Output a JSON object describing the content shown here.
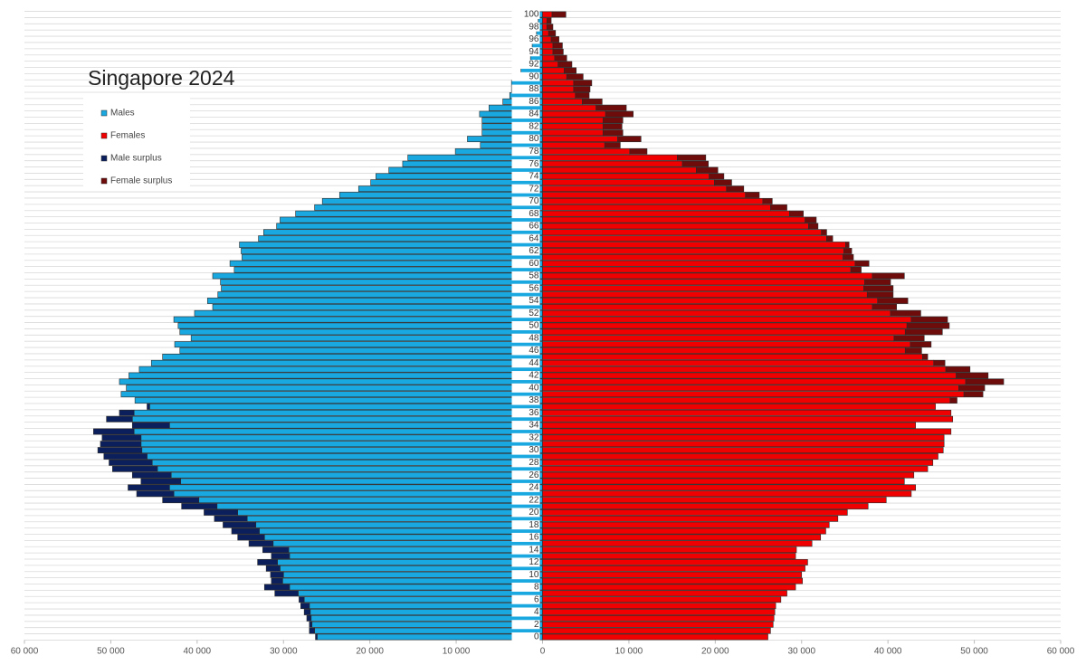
{
  "chart_data": {
    "type": "population_pyramid",
    "title": "Singapore 2024",
    "categories": [
      "0",
      null,
      "2",
      null,
      "4",
      null,
      "6",
      null,
      "8",
      null,
      "10",
      null,
      "12",
      null,
      "14",
      null,
      "16",
      null,
      "18",
      null,
      "20",
      null,
      "22",
      null,
      "24",
      null,
      "26",
      null,
      "28",
      null,
      "30",
      null,
      "32",
      null,
      "34",
      null,
      "36",
      null,
      "38",
      null,
      "40",
      null,
      "42",
      null,
      "44",
      null,
      "46",
      null,
      "48",
      null,
      "50",
      null,
      "52",
      null,
      "54",
      null,
      "56",
      null,
      "58",
      null,
      "60",
      null,
      "62",
      null,
      "64",
      null,
      "66",
      null,
      "68",
      null,
      "70",
      null,
      "72",
      null,
      "74",
      null,
      "76",
      null,
      "78",
      null,
      "80",
      null,
      "82",
      null,
      "84",
      null,
      "86",
      null,
      "88",
      null,
      "90",
      null,
      "92",
      null,
      "94",
      null,
      "96",
      null,
      "98",
      null,
      "100"
    ],
    "series": [
      {
        "name": "Males",
        "color": "#1aa8e0",
        "side": "left",
        "values": [
          26300,
          27000,
          27000,
          27300,
          27600,
          28000,
          28200,
          31000,
          32200,
          31400,
          31500,
          32000,
          33000,
          31400,
          32400,
          34000,
          35300,
          36000,
          37000,
          38000,
          39200,
          41800,
          44000,
          47000,
          48000,
          46500,
          47500,
          49800,
          50200,
          50800,
          51500,
          51200,
          51000,
          52000,
          47500,
          50500,
          49000,
          45800,
          47200,
          48800,
          48200,
          49000,
          47900,
          46700,
          45300,
          44000,
          42000,
          42600,
          40700,
          42000,
          42200,
          42700,
          40300,
          38200,
          38800,
          37600,
          37200,
          37300,
          38200,
          35700,
          36200,
          34800,
          34900,
          35100,
          32900,
          32300,
          30800,
          30400,
          28600,
          26400,
          25500,
          23500,
          21300,
          19900,
          19300,
          17800,
          16200,
          15600,
          10100,
          7200,
          8700,
          7000,
          7000,
          7000,
          7300,
          6200,
          4600,
          3800,
          3600,
          3600,
          2800,
          2500,
          1800,
          1400,
          1200,
          1200,
          1000,
          700,
          500,
          500,
          1100
        ]
      },
      {
        "name": "Females",
        "color": "#f00000",
        "side": "right",
        "values": [
          26100,
          26400,
          26700,
          26800,
          26900,
          27000,
          27600,
          28300,
          29300,
          30100,
          30000,
          30400,
          30700,
          29300,
          29400,
          31200,
          32200,
          32800,
          33200,
          34200,
          35300,
          37700,
          39800,
          42700,
          43200,
          41900,
          43000,
          44600,
          45200,
          45800,
          46400,
          46500,
          46500,
          47300,
          43200,
          47500,
          47300,
          45500,
          48000,
          51000,
          51200,
          53400,
          51600,
          49500,
          46600,
          44600,
          43900,
          45000,
          44200,
          46300,
          47100,
          46900,
          43800,
          41000,
          42300,
          40600,
          40600,
          40300,
          41900,
          36900,
          37800,
          36000,
          35800,
          35500,
          33600,
          32900,
          31900,
          31700,
          30200,
          28300,
          26600,
          25100,
          23300,
          21900,
          21000,
          20300,
          19200,
          18900,
          12100,
          9000,
          11400,
          9300,
          9200,
          9300,
          10500,
          9700,
          6900,
          5400,
          5500,
          5700,
          4700,
          3900,
          3400,
          2800,
          2400,
          2300,
          1900,
          1500,
          1200,
          1000,
          2700
        ]
      },
      {
        "name": "Male surplus",
        "color": "#0b1f5c"
      },
      {
        "name": "Female surplus",
        "color": "#6e0b0b"
      }
    ],
    "xlim": [
      -60000,
      60000
    ],
    "xticks": [
      {
        "value": -60000,
        "label": "60 000"
      },
      {
        "value": -50000,
        "label": "50 000"
      },
      {
        "value": -40000,
        "label": "40 000"
      },
      {
        "value": -30000,
        "label": "30 000"
      },
      {
        "value": -20000,
        "label": "20 000"
      },
      {
        "value": -10000,
        "label": "10 000"
      },
      0,
      {
        "value": 10000,
        "label": "10 000"
      },
      {
        "value": 20000,
        "label": "20 000"
      },
      {
        "value": 30000,
        "label": "30 000"
      },
      {
        "value": 40000,
        "label": "40 000"
      },
      {
        "value": 50000,
        "label": "50 000"
      },
      {
        "value": 60000,
        "label": "60 000"
      }
    ]
  }
}
